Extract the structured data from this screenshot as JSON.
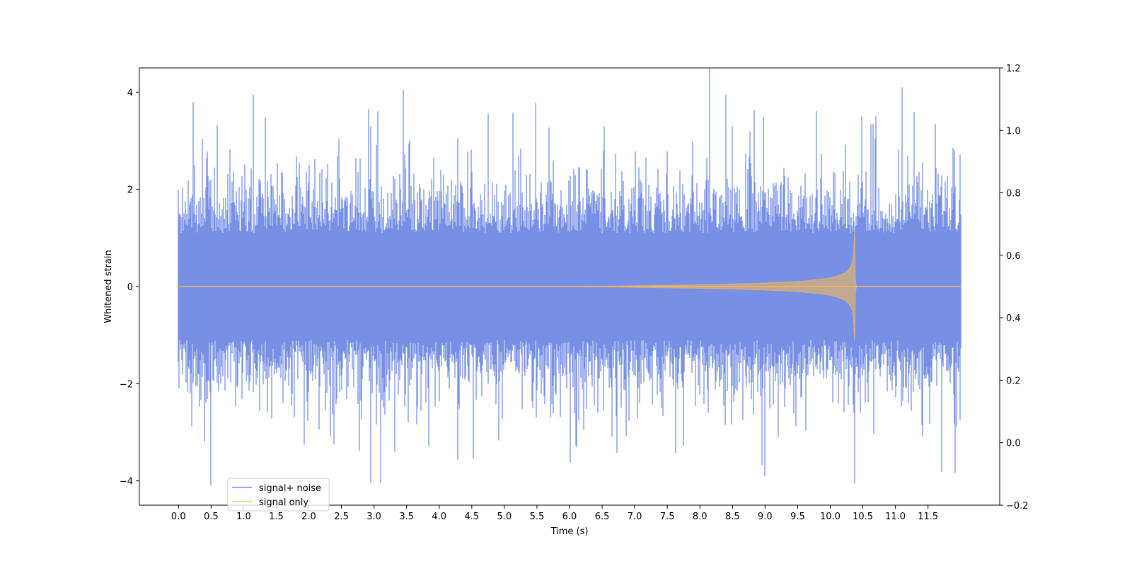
{
  "chart_data": {
    "type": "line",
    "xlabel": "Time (s)",
    "ylabel": "Whitened strain",
    "xlim": [
      -0.6,
      12.6
    ],
    "ylim": [
      -4.5,
      4.5
    ],
    "y2lim": [
      -0.2,
      1.2
    ],
    "x_ticks": [
      0.0,
      0.5,
      1.0,
      1.5,
      2.0,
      2.5,
      3.0,
      3.5,
      4.0,
      4.5,
      5.0,
      5.5,
      6.0,
      6.5,
      7.0,
      7.5,
      8.0,
      8.5,
      9.0,
      9.5,
      10.0,
      10.5,
      11.0,
      11.5
    ],
    "x_tick_labels": [
      "0.0",
      "0.5",
      "1.0",
      "1.5",
      "2.0",
      "2.5",
      "3.0",
      "3.5",
      "4.0",
      "4.5",
      "5.0",
      "5.5",
      "6.0",
      "6.5",
      "7.0",
      "7.5",
      "8.0",
      "8.5",
      "9.0",
      "9.5",
      "10.0",
      "10.5",
      "11.0",
      "11.5"
    ],
    "y_ticks": [
      -4,
      -2,
      0,
      2,
      4
    ],
    "y_tick_labels": [
      "−4",
      "−2",
      "0",
      "2",
      "4"
    ],
    "y2_ticks": [
      -0.2,
      0.0,
      0.2,
      0.4,
      0.6,
      0.8,
      1.0,
      1.2
    ],
    "y2_tick_labels": [
      "−0.2",
      "0.0",
      "0.2",
      "0.4",
      "0.6",
      "0.8",
      "1.0",
      "1.2"
    ],
    "legend_position": "lower-left",
    "series": [
      {
        "name": "signal+ noise",
        "color": "#6b87e3",
        "x_range": [
          0.0,
          12.0
        ],
        "typical_envelope": [
          -1.5,
          1.5
        ],
        "peaks_high": [
          [
            0.5,
            2.2
          ],
          [
            1.15,
            3.95
          ],
          [
            2.95,
            3.3
          ],
          [
            3.45,
            4.05
          ],
          [
            8.4,
            3.95
          ],
          [
            11.1,
            4.1
          ]
        ],
        "peaks_low": [
          [
            0.5,
            -4.1
          ],
          [
            2.95,
            -4.05
          ],
          [
            3.1,
            -4.05
          ],
          [
            9.0,
            -3.9
          ],
          [
            11.15,
            -3.65
          ]
        ]
      },
      {
        "name": "signal only",
        "color": "#ffbb4d",
        "x_range": [
          0.0,
          12.0
        ],
        "chirp_start": 5.8,
        "merger_time": 10.37,
        "peak_amplitude": 1.6
      }
    ]
  }
}
